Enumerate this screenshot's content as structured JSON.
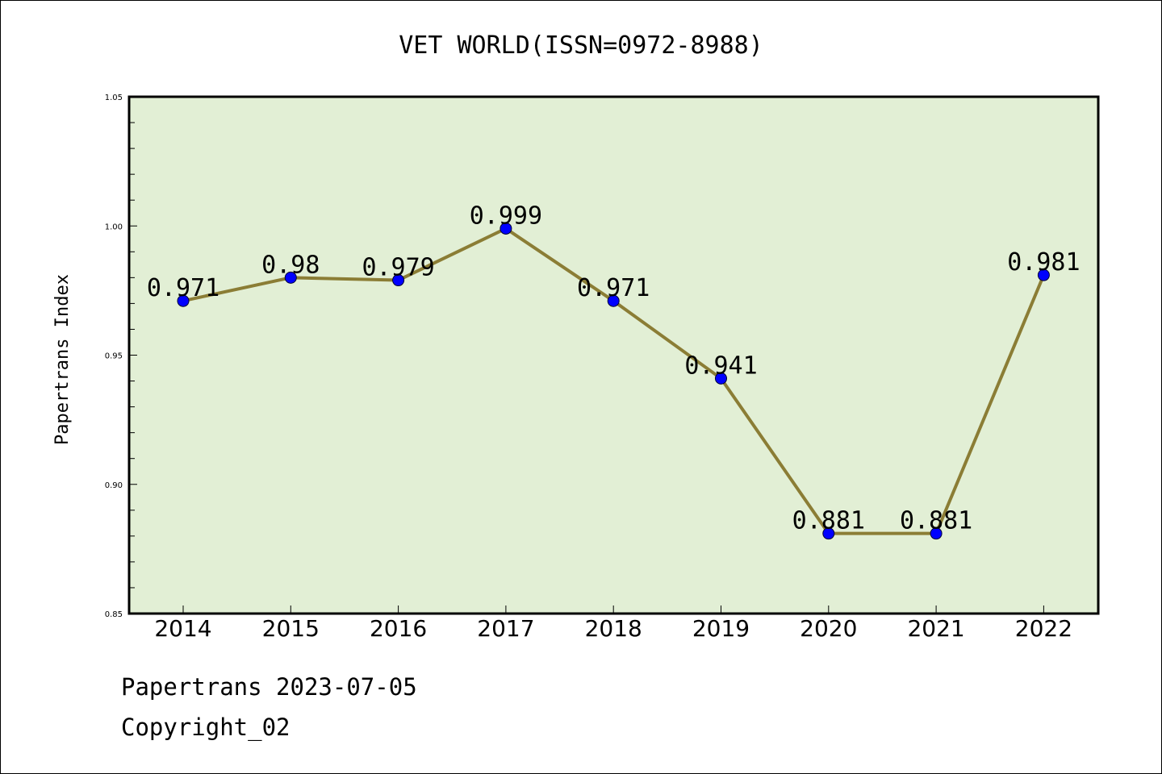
{
  "chart_data": {
    "type": "line",
    "title": "VET WORLD(ISSN=0972-8988)",
    "ylabel": "Papertrans Index",
    "xlabel": "",
    "categories": [
      "2014",
      "2015",
      "2016",
      "2017",
      "2018",
      "2019",
      "2020",
      "2021",
      "2022"
    ],
    "series": [
      {
        "values": [
          0.971,
          0.98,
          0.979,
          0.999,
          0.971,
          0.941,
          0.881,
          0.881,
          0.981
        ]
      }
    ],
    "data_labels": [
      "0.971",
      "0.98",
      "0.979",
      "0.999",
      "0.971",
      "0.941",
      "0.881",
      "0.881",
      "0.981"
    ],
    "ylim": [
      0.85,
      1.05
    ],
    "yticks": [
      "0.85",
      "0.90",
      "0.95",
      "1.00",
      "1.05"
    ],
    "grid": false,
    "legend": "none",
    "colors": {
      "plot_background": "#e2efd5",
      "line": "#8b7d35",
      "marker": "#0000ff"
    }
  },
  "footer": {
    "line1": "Papertrans 2023-07-05",
    "line2": "Copyright_02"
  }
}
